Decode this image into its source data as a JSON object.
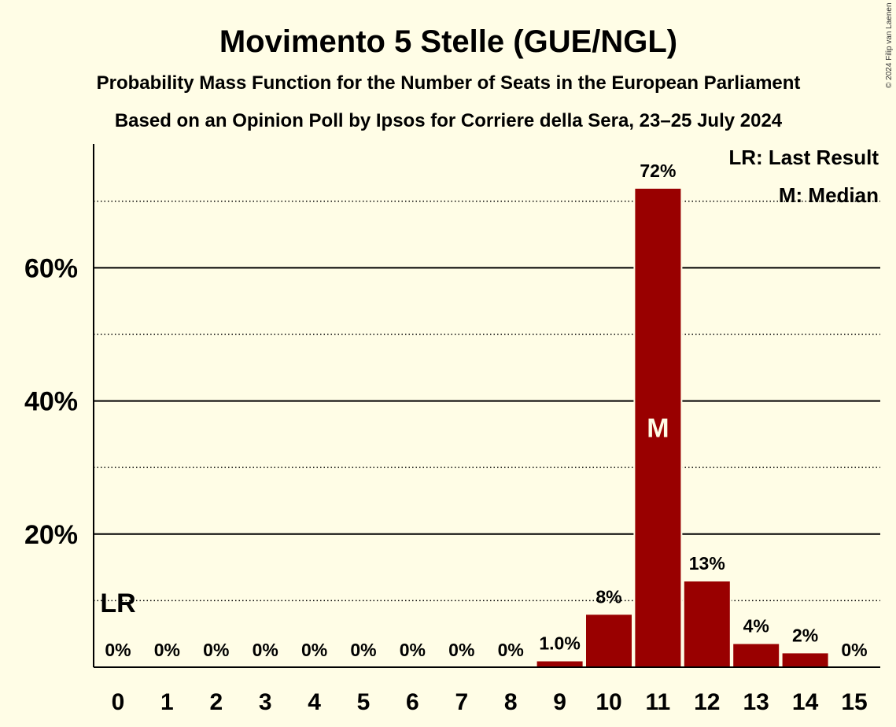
{
  "chart_data": {
    "type": "bar",
    "title": "Movimento 5 Stelle (GUE/NGL)",
    "subtitle": "Probability Mass Function for the Number of Seats in the European Parliament",
    "subtitle2": "Based on an Opinion Poll by Ipsos for Corriere della Sera, 23–25 July 2024",
    "copyright": "© 2024 Filip van Laenen",
    "xlabel": "",
    "ylabel": "",
    "ylim": [
      0,
      78.6
    ],
    "yticks": [
      {
        "value": 20,
        "label": "20%"
      },
      {
        "value": 40,
        "label": "40%"
      },
      {
        "value": 60,
        "label": "60%"
      }
    ],
    "dotted_gridlines": [
      10,
      30,
      50,
      70
    ],
    "categories": [
      "0",
      "1",
      "2",
      "3",
      "4",
      "5",
      "6",
      "7",
      "8",
      "9",
      "10",
      "11",
      "12",
      "13",
      "14",
      "15"
    ],
    "values": [
      0,
      0,
      0,
      0,
      0,
      0,
      0,
      0,
      0,
      1.0,
      8,
      72,
      13,
      3.6,
      2.2,
      0
    ],
    "value_labels": [
      "0%",
      "0%",
      "0%",
      "0%",
      "0%",
      "0%",
      "0%",
      "0%",
      "0%",
      "1.0%",
      "8%",
      "72%",
      "13%",
      "4%",
      "2%",
      "0%"
    ],
    "bar_color": "#990000",
    "last_result": {
      "category_index": 0,
      "label": "LR"
    },
    "median": {
      "category_index": 11,
      "label": "M"
    },
    "legend": {
      "position": "top-right",
      "items": [
        "LR: Last Result",
        "M: Median"
      ]
    }
  }
}
